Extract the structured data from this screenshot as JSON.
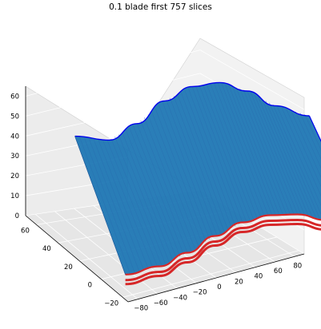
{
  "chart_data": {
    "type": "surface3d",
    "title": "0.1 blade first 757 slices",
    "xlabel": "",
    "ylabel": "",
    "zlabel": "",
    "xlim": [
      -90,
      90
    ],
    "ylim": [
      -25,
      70
    ],
    "zlim": [
      0,
      65
    ],
    "grid": true,
    "x_ticks": [
      "−80",
      "−60",
      "−40",
      "−20",
      "0",
      "20",
      "40",
      "60",
      "80"
    ],
    "y_ticks": [
      "−20",
      "0",
      "20",
      "40",
      "60"
    ],
    "z_ticks": [
      "0",
      "10",
      "20",
      "30",
      "40",
      "50",
      "60"
    ],
    "series": [
      {
        "color": "#1f77b4",
        "values": [
          {
            "x": -85,
            "z": 38
          },
          {
            "x": -60,
            "z": 35
          },
          {
            "x": -40,
            "z": 42
          },
          {
            "x": -20,
            "z": 52
          },
          {
            "x": 0,
            "z": 58
          },
          {
            "x": 20,
            "z": 59
          },
          {
            "x": 40,
            "z": 54
          },
          {
            "x": 60,
            "z": 46
          },
          {
            "x": 85,
            "z": 40
          }
        ]
      },
      {
        "color": "#d62728",
        "values": [
          {
            "x": -85,
            "z": 0
          },
          {
            "x": -60,
            "z": 1
          },
          {
            "x": -40,
            "z": 4
          },
          {
            "x": -20,
            "z": 8
          },
          {
            "x": 0,
            "z": 11
          },
          {
            "x": 20,
            "z": 12
          },
          {
            "x": 40,
            "z": 11
          },
          {
            "x": 60,
            "z": 8
          },
          {
            "x": 85,
            "z": 5
          }
        ]
      }
    ]
  }
}
